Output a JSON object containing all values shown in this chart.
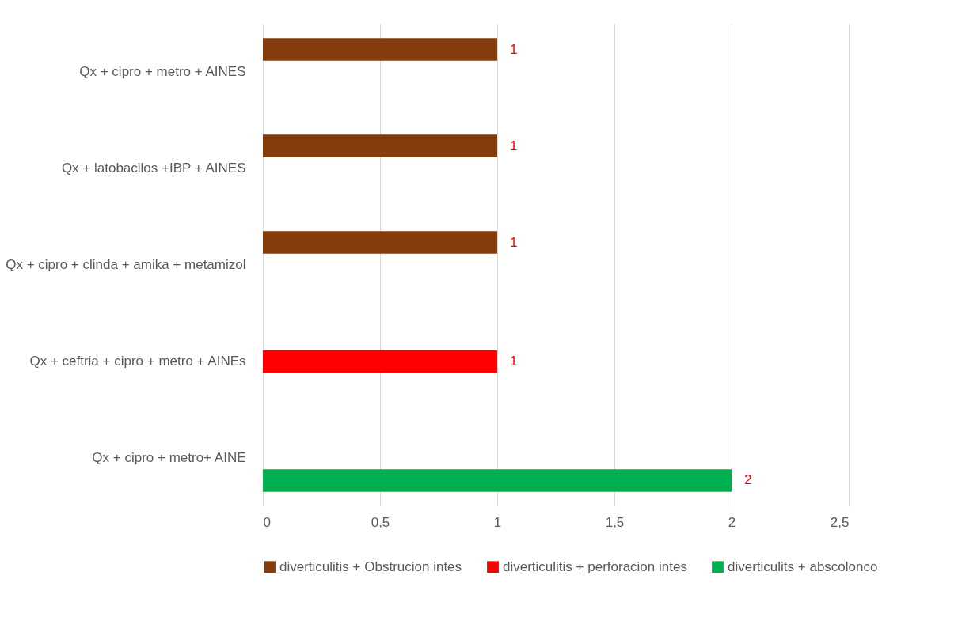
{
  "chart_data": {
    "type": "bar",
    "orientation": "horizontal",
    "categories": [
      "Qx + cipro + metro + AINES",
      "Qx + latobacilos +IBP + AINES",
      "Qx + cipro + clinda + amika + metamizol",
      "Qx + ceftria + cipro + metro + AINEs",
      "Qx + cipro + metro+ AINE"
    ],
    "series": [
      {
        "name": "diverticulitis + Obstrucion intes",
        "color": "#843c0c",
        "values": [
          1,
          1,
          1,
          null,
          null
        ]
      },
      {
        "name": "diverticulitis + perforacion intes",
        "color": "#ff0000",
        "values": [
          null,
          null,
          null,
          1,
          null
        ]
      },
      {
        "name": "diverticulits + abscolonco",
        "color": "#00b050",
        "values": [
          null,
          null,
          null,
          null,
          2
        ]
      }
    ],
    "xlim": [
      0,
      2.5
    ],
    "xticks": [
      0,
      {
        "value": 0.5,
        "label": "0,5"
      },
      1,
      {
        "value": 1.5,
        "label": "1,5"
      },
      2,
      {
        "value": 2.5,
        "label": "2,5"
      }
    ],
    "data_labels": true,
    "grid": "x",
    "legend": "bottom"
  }
}
